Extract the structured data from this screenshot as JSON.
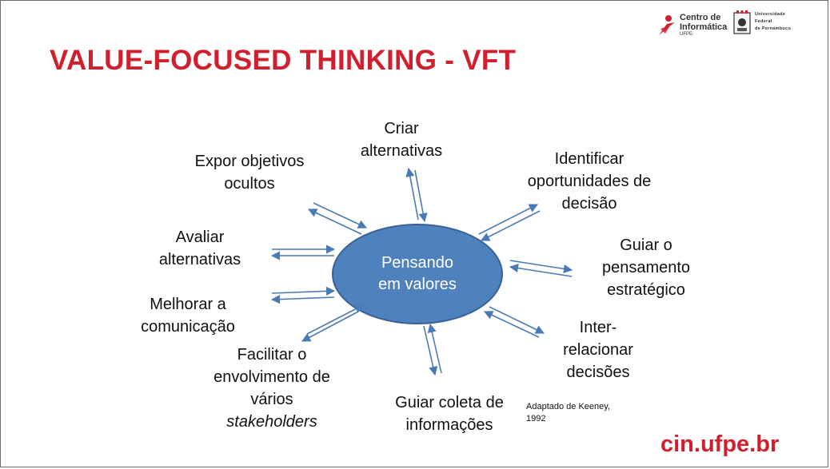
{
  "title": "VALUE-FOCUSED THINKING - VFT",
  "logo": {
    "cin_line1": "Centro de",
    "cin_line2": "Informática",
    "cin_line3": "UFPE",
    "ufpe_line1": "Universidade",
    "ufpe_line2": "Federal",
    "ufpe_line3": "de Pernambuco"
  },
  "center": {
    "line1": "Pensando",
    "line2": "em valores"
  },
  "labels": {
    "criar": [
      "Criar",
      "alternativas"
    ],
    "identificar": [
      "Identificar",
      "oportunidades de",
      "decisão"
    ],
    "guiar_pensamento": [
      "Guiar o",
      "pensamento",
      "estratégico"
    ],
    "inter": [
      "Inter-",
      "relacionar",
      "decisões"
    ],
    "coleta": [
      "Guiar coleta de",
      "informações"
    ],
    "facilitar": [
      "Facilitar o",
      "envolvimento de",
      "vários",
      "stakeholders"
    ],
    "melhorar": [
      "Melhorar a",
      "comunicação"
    ],
    "avaliar": [
      "Avaliar",
      "alternativas"
    ],
    "expor": [
      "Expor objetivos",
      "ocultos"
    ]
  },
  "source": [
    "Adaptado de Keeney,",
    "1992"
  ],
  "footer": "cin.ufpe.br",
  "colors": {
    "accent": "#d0202e",
    "ellipse_fill": "#4f81bd",
    "ellipse_stroke": "#3a6296",
    "arrow": "#4a7ab5"
  }
}
